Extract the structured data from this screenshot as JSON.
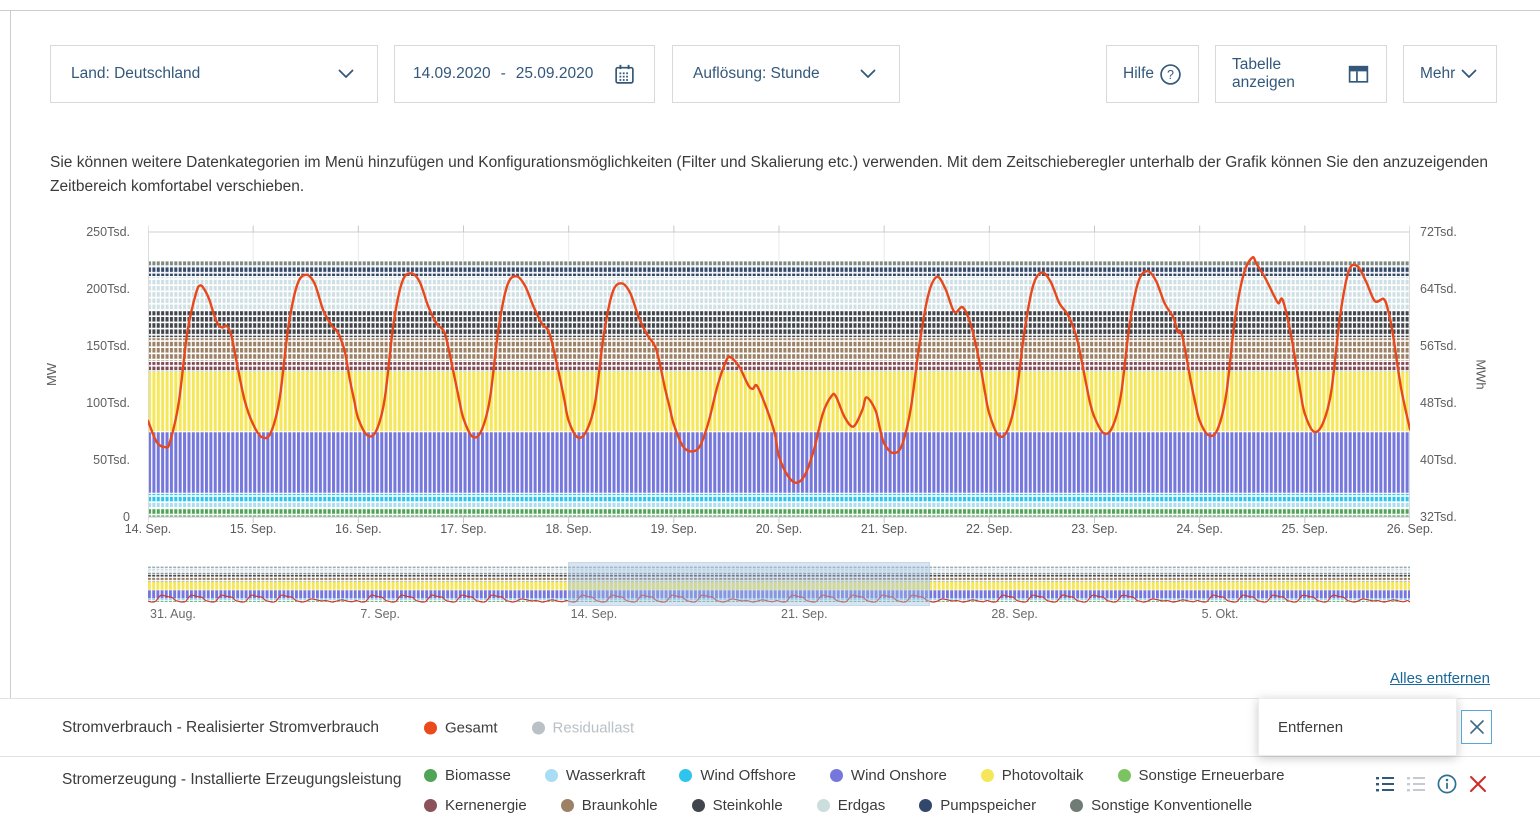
{
  "toolbar": {
    "country": "Land: Deutschland",
    "date_from": "14.09.2020",
    "date_separator": "-",
    "date_to": "25.09.2020",
    "resolution": "Auflösung: Stunde",
    "help": "Hilfe",
    "show_table": "Tabelle anzeigen",
    "more": "Mehr"
  },
  "description": "Sie können weitere Datenkategorien im Menü hinzufügen und Konfigurationsmöglichkeiten (Filter und Skalierung etc.) verwenden. Mit dem Zeitschieberegler unterhalb der Grafik können Sie den anzuzeigenden Zeitbereich komfortabel verschieben.",
  "chart_data": {
    "type": "stacked-area (installed capacity) + line (consumption)",
    "title": "",
    "left_axis": {
      "label": "MW",
      "ticks": [
        "0",
        "50Tsd.",
        "100Tsd.",
        "150Tsd.",
        "200Tsd.",
        "250Tsd."
      ],
      "range_tsd": [
        0,
        250
      ]
    },
    "right_axis": {
      "label": "MWh",
      "ticks": [
        "32Tsd.",
        "40Tsd.",
        "48Tsd.",
        "56Tsd.",
        "64Tsd.",
        "72Tsd."
      ],
      "range_tsd": [
        32,
        72
      ]
    },
    "x_axis": {
      "labels": [
        "14. Sep.",
        "15. Sep.",
        "16. Sep.",
        "17. Sep.",
        "18. Sep.",
        "19. Sep.",
        "20. Sep.",
        "21. Sep.",
        "22. Sep.",
        "23. Sep.",
        "24. Sep.",
        "25. Sep.",
        "26. Sep."
      ],
      "hours_span": 288
    },
    "bands_unit": "Tsd. MW (installierte Leistung, kumuliert)",
    "bands": [
      {
        "name": "Biomasse",
        "from": 0,
        "to": 8.3,
        "color": "#4fa457",
        "dashed": true
      },
      {
        "name": "Wasserkraft",
        "from": 8.3,
        "to": 13.1,
        "color": "#a9dcf5",
        "dashed": true
      },
      {
        "name": "Wind Offshore",
        "from": 13.1,
        "to": 20.8,
        "color": "#2fc4ee",
        "dashed": true
      },
      {
        "name": "Wind Onshore",
        "from": 20.8,
        "to": 74.8,
        "color": "#7577dd",
        "dashed": false
      },
      {
        "name": "Photovoltaik",
        "from": 74.8,
        "to": 127.8,
        "color": "#f6e75a",
        "dashed": false
      },
      {
        "name": "Sonstige Erneuerbare",
        "from": 127.8,
        "to": 128.3,
        "color": "#7cc462",
        "dashed": false
      },
      {
        "name": "Kernenergie",
        "from": 128.3,
        "to": 136.4,
        "color": "#7e4a54",
        "dashed": true
      },
      {
        "name": "Braunkohle",
        "from": 136.4,
        "to": 157.3,
        "color": "#9c8164",
        "dashed": true
      },
      {
        "name": "Steinkohle",
        "from": 157.3,
        "to": 181.0,
        "color": "#41464d",
        "dashed": true
      },
      {
        "name": "Erdgas",
        "from": 181.0,
        "to": 210.9,
        "color": "#cfe0e4",
        "dashed": true
      },
      {
        "name": "Pumpspeicher",
        "from": 210.9,
        "to": 220.3,
        "color": "#35496b",
        "dashed": true
      },
      {
        "name": "Sonstige Konventionelle",
        "from": 220.3,
        "to": 224.7,
        "color": "#7d8a81",
        "dashed": true
      }
    ],
    "consumption_series": {
      "name": "Gesamt",
      "color": "#e8481c",
      "unit": "Tsd. MWh (rechte Achse), Punkte: [Stunde ab 14.09. 00:00, Wert]",
      "points": [
        [
          0,
          45.5
        ],
        [
          2,
          42.5
        ],
        [
          4,
          41.8
        ],
        [
          5,
          42.5
        ],
        [
          7,
          48
        ],
        [
          9,
          58
        ],
        [
          11,
          63.5
        ],
        [
          12,
          64.5
        ],
        [
          13,
          63.8
        ],
        [
          14,
          62.5
        ],
        [
          15,
          60.5
        ],
        [
          16,
          59
        ],
        [
          17,
          58.6
        ],
        [
          18,
          58.8
        ],
        [
          19,
          57.5
        ],
        [
          20,
          54.5
        ],
        [
          22,
          48.5
        ],
        [
          24,
          45
        ],
        [
          26,
          43.2
        ],
        [
          28,
          43.8
        ],
        [
          30,
          48.5
        ],
        [
          32,
          58.5
        ],
        [
          34,
          64.5
        ],
        [
          36,
          66
        ],
        [
          38,
          64.8
        ],
        [
          40,
          61
        ],
        [
          42,
          58.8
        ],
        [
          43,
          58.2
        ],
        [
          44,
          57
        ],
        [
          45,
          55
        ],
        [
          46,
          51.5
        ],
        [
          47,
          48.5
        ],
        [
          48,
          45.8
        ],
        [
          50,
          43.5
        ],
        [
          52,
          44
        ],
        [
          54,
          48.5
        ],
        [
          56,
          59
        ],
        [
          58,
          65
        ],
        [
          60,
          66.2
        ],
        [
          62,
          65
        ],
        [
          64,
          61.5
        ],
        [
          66,
          59
        ],
        [
          67,
          58.5
        ],
        [
          68,
          57.2
        ],
        [
          70,
          51.5
        ],
        [
          71,
          48.5
        ],
        [
          72,
          45.8
        ],
        [
          74,
          43.3
        ],
        [
          76,
          44
        ],
        [
          78,
          48.5
        ],
        [
          80,
          58.5
        ],
        [
          82,
          64.5
        ],
        [
          84,
          65.8
        ],
        [
          86,
          64.5
        ],
        [
          88,
          61.5
        ],
        [
          90,
          59
        ],
        [
          91,
          58.5
        ],
        [
          92,
          57
        ],
        [
          94,
          51.5
        ],
        [
          95,
          48.5
        ],
        [
          96,
          45.5
        ],
        [
          98,
          43.2
        ],
        [
          100,
          44
        ],
        [
          102,
          48
        ],
        [
          104,
          57.5
        ],
        [
          106,
          63.5
        ],
        [
          108,
          64.8
        ],
        [
          110,
          63.5
        ],
        [
          112,
          60
        ],
        [
          114,
          57.5
        ],
        [
          116,
          55.5
        ],
        [
          118,
          50
        ],
        [
          119,
          47.5
        ],
        [
          120,
          45
        ],
        [
          122,
          42
        ],
        [
          124,
          41.2
        ],
        [
          126,
          42
        ],
        [
          128,
          45.5
        ],
        [
          130,
          50.5
        ],
        [
          132,
          54
        ],
        [
          133,
          54.4
        ],
        [
          135,
          53
        ],
        [
          137,
          50.5
        ],
        [
          138,
          50
        ],
        [
          139,
          50.4
        ],
        [
          141,
          47.5
        ],
        [
          143,
          43.8
        ],
        [
          144,
          40.5
        ],
        [
          146,
          37.8
        ],
        [
          148,
          36.8
        ],
        [
          150,
          38
        ],
        [
          152,
          41.5
        ],
        [
          154,
          46.5
        ],
        [
          156,
          49
        ],
        [
          157,
          48.9
        ],
        [
          159,
          46
        ],
        [
          161,
          44.7
        ],
        [
          163,
          47
        ],
        [
          164,
          48.8
        ],
        [
          166,
          47
        ],
        [
          167,
          44.5
        ],
        [
          168,
          42.3
        ],
        [
          170,
          41
        ],
        [
          172,
          42
        ],
        [
          174,
          47
        ],
        [
          176,
          56
        ],
        [
          178,
          63
        ],
        [
          180,
          65.7
        ],
        [
          182,
          64
        ],
        [
          184,
          60.8
        ],
        [
          186,
          61.4
        ],
        [
          188,
          58.5
        ],
        [
          190,
          53
        ],
        [
          191,
          49.5
        ],
        [
          192,
          46.5
        ],
        [
          194,
          43.5
        ],
        [
          196,
          44
        ],
        [
          198,
          48.5
        ],
        [
          200,
          58
        ],
        [
          202,
          64.5
        ],
        [
          204,
          66.3
        ],
        [
          206,
          65
        ],
        [
          208,
          62
        ],
        [
          210,
          60.3
        ],
        [
          212,
          57
        ],
        [
          214,
          51
        ],
        [
          215,
          48
        ],
        [
          216,
          46
        ],
        [
          218,
          43.8
        ],
        [
          220,
          44.5
        ],
        [
          222,
          49
        ],
        [
          224,
          59
        ],
        [
          226,
          65
        ],
        [
          228,
          66.5
        ],
        [
          230,
          65.2
        ],
        [
          232,
          62
        ],
        [
          234,
          60
        ],
        [
          235,
          58
        ],
        [
          236,
          57.5
        ],
        [
          238,
          51
        ],
        [
          239,
          48
        ],
        [
          240,
          45.5
        ],
        [
          242,
          43.5
        ],
        [
          244,
          44.2
        ],
        [
          246,
          49
        ],
        [
          248,
          59.5
        ],
        [
          250,
          66
        ],
        [
          252,
          68.4
        ],
        [
          253,
          67.5
        ],
        [
          255,
          65.5
        ],
        [
          257,
          63
        ],
        [
          258,
          62
        ],
        [
          259,
          62.4
        ],
        [
          261,
          57
        ],
        [
          263,
          49.5
        ],
        [
          264,
          46.5
        ],
        [
          266,
          44
        ],
        [
          268,
          45
        ],
        [
          270,
          49.5
        ],
        [
          272,
          60
        ],
        [
          274,
          66.5
        ],
        [
          276,
          67.2
        ],
        [
          278,
          65
        ],
        [
          280,
          62.3
        ],
        [
          282,
          62.6
        ],
        [
          283,
          61
        ],
        [
          284,
          58
        ],
        [
          286,
          50
        ],
        [
          288,
          44.3
        ]
      ]
    }
  },
  "minimap": {
    "labels": [
      "31. Aug.",
      "7. Sep.",
      "14. Sep.",
      "21. Sep.",
      "28. Sep.",
      "5. Okt."
    ],
    "total_days": 42,
    "window": {
      "from_day": 14,
      "to_day": 26
    }
  },
  "remove_all": "Alles entfernen",
  "popup": {
    "label": "Entfernen"
  },
  "legend_rows": [
    {
      "label": "Stromverbrauch - Realisierter Stromverbrauch",
      "lines": [
        [
          {
            "name": "Gesamt",
            "color": "#eb4a1d",
            "active": true
          },
          {
            "name": "Residuallast",
            "color": "#b9c0c6",
            "active": false
          }
        ]
      ]
    },
    {
      "label": "Stromerzeugung - Installierte Erzeugungsleistung",
      "lines": [
        [
          {
            "name": "Biomasse",
            "color": "#4fa457",
            "active": true
          },
          {
            "name": "Wasserkraft",
            "color": "#a9dcf5",
            "active": true
          },
          {
            "name": "Wind Offshore",
            "color": "#2fc4ee",
            "active": true
          },
          {
            "name": "Wind Onshore",
            "color": "#7577dd",
            "active": true
          },
          {
            "name": "Photovoltaik",
            "color": "#f6e75a",
            "active": true
          },
          {
            "name": "Sonstige Erneuerbare",
            "color": "#7cc462",
            "active": true
          }
        ],
        [
          {
            "name": "Kernenergie",
            "color": "#8c525c",
            "active": true
          },
          {
            "name": "Braunkohle",
            "color": "#9c8164",
            "active": true
          },
          {
            "name": "Steinkohle",
            "color": "#41464d",
            "active": true
          },
          {
            "name": "Erdgas",
            "color": "#cbdedd",
            "active": true
          },
          {
            "name": "Pumpspeicher",
            "color": "#32476b",
            "active": true
          },
          {
            "name": "Sonstige Konventionelle",
            "color": "#6f7b74",
            "active": true
          }
        ]
      ]
    }
  ]
}
